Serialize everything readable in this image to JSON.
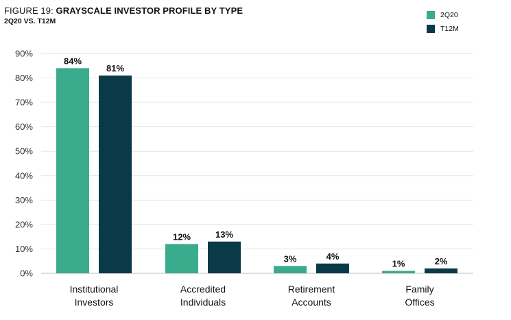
{
  "header": {
    "title_prefix": "FIGURE 19: ",
    "title_main": "GRAYSCALE INVESTOR PROFILE BY TYPE",
    "subtitle": "2Q20 VS. T12M"
  },
  "legend": [
    {
      "label": "2Q20",
      "color": "#3aab8d"
    },
    {
      "label": "T12M",
      "color": "#0a3a47"
    }
  ],
  "chart_data": {
    "type": "bar",
    "categories": [
      [
        "Institutional",
        "Investors"
      ],
      [
        "Accredited",
        "Individuals"
      ],
      [
        "Retirement",
        "Accounts"
      ],
      [
        "Family",
        "Offices"
      ]
    ],
    "series": [
      {
        "name": "2Q20",
        "values": [
          84,
          12,
          3,
          1
        ],
        "labels": [
          "84%",
          "12%",
          "3%",
          "1%"
        ],
        "color": "#3aab8d"
      },
      {
        "name": "T12M",
        "values": [
          81,
          13,
          4,
          2
        ],
        "labels": [
          "81%",
          "13%",
          "4%",
          "2%"
        ],
        "color": "#0a3a47"
      }
    ],
    "yticks": [
      "0%",
      "10%",
      "20%",
      "30%",
      "40%",
      "50%",
      "60%",
      "70%",
      "80%",
      "90%"
    ],
    "ylim": [
      0,
      90
    ],
    "grid": true,
    "legend_position": "top-right"
  }
}
